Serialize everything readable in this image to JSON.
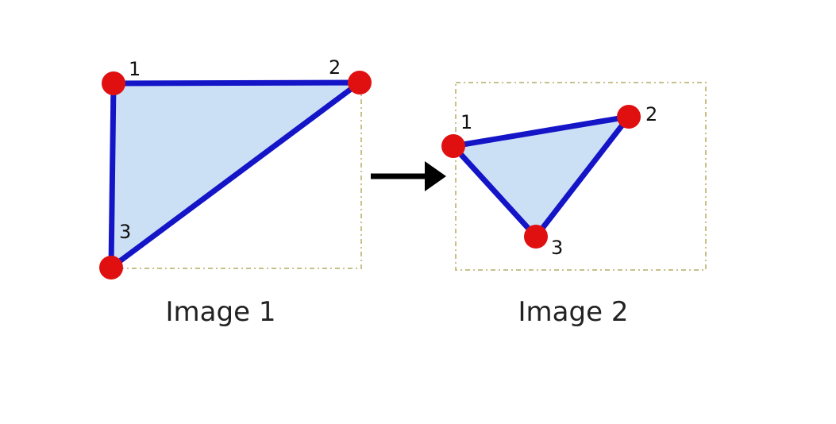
{
  "colors": {
    "background": "#ffffff",
    "triangle_fill": "#cce0f5",
    "triangle_stroke": "#1515c8",
    "vertex": "#e01010",
    "frame": "#c8c08a",
    "arrow": "#000000",
    "text": "#222222"
  },
  "image1": {
    "caption": "Image 1",
    "vertex_labels": [
      "1",
      "2",
      "3"
    ]
  },
  "image2": {
    "caption": "Image 2",
    "vertex_labels": [
      "1",
      "2",
      "3"
    ]
  },
  "arrow": {
    "icon": "right-arrow-icon"
  }
}
